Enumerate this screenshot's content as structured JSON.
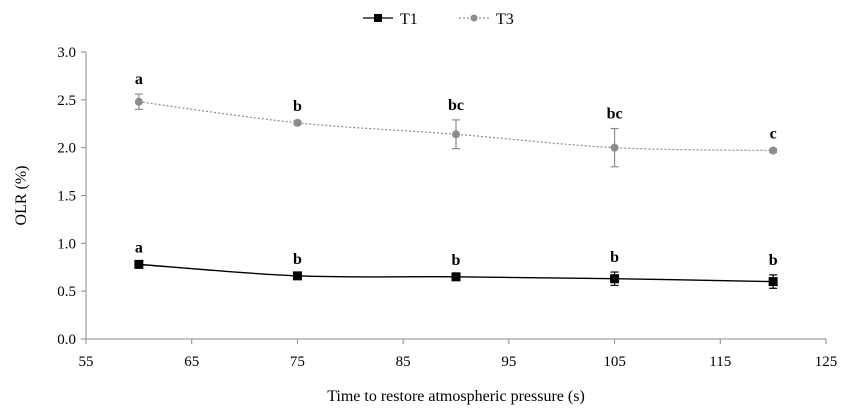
{
  "chart_data": {
    "type": "line",
    "title": "",
    "xlabel": "Time to restore atmospheric pressure (s)",
    "ylabel": "OLR (%)",
    "xlim": [
      55,
      125
    ],
    "ylim": [
      0.0,
      3.0
    ],
    "x_ticks": [
      "55",
      "65",
      "75",
      "85",
      "95",
      "105",
      "115",
      "125"
    ],
    "y_ticks": [
      "0.0",
      "0.5",
      "1.0",
      "1.5",
      "2.0",
      "2.5",
      "3.0"
    ],
    "x": [
      60,
      75,
      90,
      105,
      120
    ],
    "grid": false,
    "legend_position": "top-center",
    "series": [
      {
        "name": "T1",
        "values": [
          0.78,
          0.66,
          0.65,
          0.63,
          0.6
        ],
        "errors": [
          0.02,
          0.02,
          0.02,
          0.07,
          0.07
        ],
        "labels": [
          "a",
          "b",
          "b",
          "b",
          "b"
        ],
        "color": "#000000",
        "line_style": "solid",
        "marker": "square"
      },
      {
        "name": "T3",
        "values": [
          2.48,
          2.26,
          2.14,
          2.0,
          1.97
        ],
        "errors": [
          0.08,
          0.02,
          0.15,
          0.2,
          0.02
        ],
        "labels": [
          "a",
          "b",
          "bc",
          "bc",
          "c"
        ],
        "color": "#8c8c8c",
        "line_style": "dotted",
        "marker": "circle"
      }
    ]
  }
}
